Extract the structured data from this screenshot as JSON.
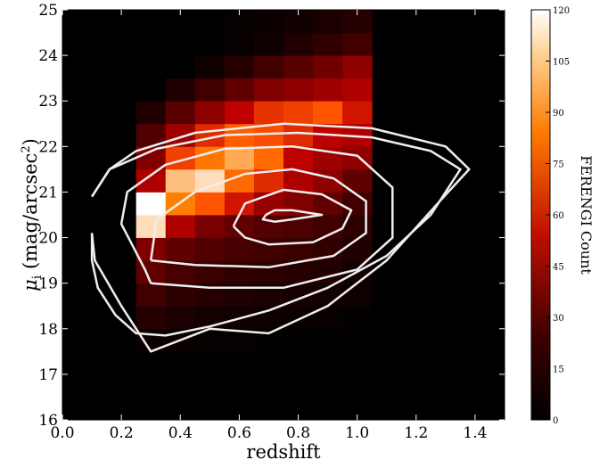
{
  "chart_data": {
    "type": "heatmap",
    "title": "",
    "xlabel": "redshift",
    "ylabel_main": "μ",
    "ylabel_sub": "i",
    "ylabel_rest": " (mag/arcsec",
    "ylabel_sup": "2",
    "ylabel_end": ")",
    "xlim": [
      0.0,
      1.5
    ],
    "ylim": [
      16,
      25
    ],
    "xticks": [
      "0.0",
      "0.2",
      "0.4",
      "0.6",
      "0.8",
      "1.0",
      "1.2",
      "1.4"
    ],
    "yticks": [
      "16",
      "17",
      "18",
      "19",
      "20",
      "21",
      "22",
      "23",
      "24",
      "25"
    ],
    "x_edges": [
      0.25,
      0.35,
      0.45,
      0.55,
      0.65,
      0.75,
      0.85,
      0.95,
      1.05
    ],
    "y_edges": [
      17.5,
      18.0,
      18.5,
      19.0,
      19.5,
      20.0,
      20.5,
      21.0,
      21.5,
      22.0,
      22.5,
      23.0,
      23.5,
      24.0,
      24.5,
      25.0
    ],
    "counts": [
      [
        3,
        3,
        2,
        2,
        1,
        1,
        0,
        0
      ],
      [
        12,
        8,
        6,
        5,
        4,
        3,
        2,
        1
      ],
      [
        20,
        14,
        12,
        10,
        8,
        7,
        6,
        4
      ],
      [
        30,
        22,
        18,
        15,
        14,
        12,
        10,
        6
      ],
      [
        40,
        30,
        25,
        22,
        20,
        18,
        15,
        10
      ],
      [
        112,
        55,
        38,
        30,
        26,
        24,
        20,
        14
      ],
      [
        120,
        90,
        80,
        65,
        48,
        40,
        30,
        20
      ],
      [
        55,
        105,
        112,
        85,
        70,
        55,
        45,
        30
      ],
      [
        40,
        75,
        88,
        100,
        85,
        60,
        50,
        45
      ],
      [
        25,
        50,
        70,
        82,
        78,
        70,
        60,
        55
      ],
      [
        10,
        28,
        45,
        60,
        72,
        75,
        80,
        65
      ],
      [
        0,
        10,
        20,
        30,
        40,
        45,
        50,
        55
      ],
      [
        0,
        0,
        5,
        12,
        20,
        28,
        35,
        45
      ],
      [
        0,
        0,
        0,
        2,
        5,
        10,
        15,
        20
      ],
      [
        0,
        0,
        0,
        2,
        3,
        5,
        8,
        12
      ]
    ],
    "contours": [
      [
        [
          0.69,
          20.5
        ],
        [
          0.72,
          20.6
        ],
        [
          0.78,
          20.6
        ],
        [
          0.88,
          20.5
        ],
        [
          0.78,
          20.4
        ],
        [
          0.72,
          20.35
        ],
        [
          0.68,
          20.4
        ],
        [
          0.69,
          20.5
        ]
      ],
      [
        [
          0.58,
          20.25
        ],
        [
          0.62,
          20.75
        ],
        [
          0.75,
          21.05
        ],
        [
          0.88,
          20.95
        ],
        [
          0.98,
          20.6
        ],
        [
          0.95,
          20.2
        ],
        [
          0.85,
          19.9
        ],
        [
          0.7,
          19.85
        ],
        [
          0.62,
          20.0
        ],
        [
          0.58,
          20.25
        ]
      ],
      [
        [
          0.3,
          19.5
        ],
        [
          0.32,
          20.4
        ],
        [
          0.45,
          21.0
        ],
        [
          0.62,
          21.4
        ],
        [
          0.78,
          21.5
        ],
        [
          0.92,
          21.3
        ],
        [
          1.03,
          20.8
        ],
        [
          1.03,
          20.1
        ],
        [
          0.92,
          19.6
        ],
        [
          0.7,
          19.35
        ],
        [
          0.45,
          19.4
        ],
        [
          0.3,
          19.5
        ]
      ],
      [
        [
          0.3,
          19.0
        ],
        [
          0.28,
          19.3
        ],
        [
          0.2,
          20.3
        ],
        [
          0.22,
          21.0
        ],
        [
          0.35,
          21.6
        ],
        [
          0.55,
          21.95
        ],
        [
          0.78,
          22.0
        ],
        [
          1.0,
          21.8
        ],
        [
          1.12,
          21.1
        ],
        [
          1.12,
          20.0
        ],
        [
          1.0,
          19.3
        ],
        [
          0.75,
          18.9
        ],
        [
          0.5,
          18.9
        ],
        [
          0.3,
          19.0
        ]
      ],
      [
        [
          0.1,
          20.9
        ],
        [
          0.16,
          21.5
        ],
        [
          0.32,
          21.95
        ],
        [
          0.55,
          22.25
        ],
        [
          0.8,
          22.3
        ],
        [
          1.05,
          22.2
        ],
        [
          1.25,
          21.9
        ],
        [
          1.35,
          21.5
        ],
        [
          1.25,
          20.5
        ],
        [
          1.1,
          19.6
        ],
        [
          0.9,
          18.9
        ],
        [
          0.7,
          18.4
        ],
        [
          0.5,
          18.05
        ],
        [
          0.35,
          17.85
        ],
        [
          0.25,
          17.9
        ],
        [
          0.18,
          18.3
        ],
        [
          0.12,
          18.9
        ],
        [
          0.1,
          19.5
        ],
        [
          0.1,
          20.1
        ]
      ],
      [
        [
          0.1,
          20.1
        ],
        [
          0.11,
          19.5
        ],
        [
          0.2,
          18.5
        ],
        [
          0.3,
          17.5
        ],
        [
          0.5,
          18.0
        ],
        [
          0.7,
          17.9
        ],
        [
          0.9,
          18.5
        ],
        [
          1.1,
          19.5
        ],
        [
          1.28,
          20.8
        ],
        [
          1.38,
          21.5
        ],
        [
          1.3,
          22.0
        ],
        [
          1.05,
          22.4
        ],
        [
          0.75,
          22.5
        ],
        [
          0.45,
          22.3
        ],
        [
          0.25,
          21.9
        ],
        [
          0.16,
          21.5
        ],
        [
          0.1,
          20.9
        ]
      ]
    ],
    "contour_color": "#eeeeee",
    "colormap": "gist_heat",
    "colorbar": {
      "label": "FERENGI Count",
      "range": [
        0,
        120
      ],
      "ticks": [
        "0",
        "15",
        "30",
        "45",
        "60",
        "75",
        "90",
        "105",
        "120"
      ]
    }
  }
}
